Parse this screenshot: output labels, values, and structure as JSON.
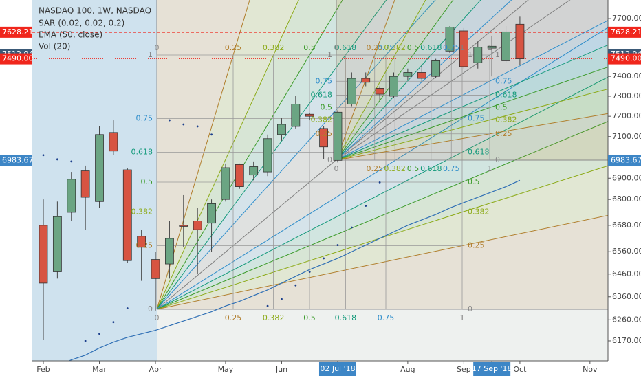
{
  "chart_data": {
    "type": "candlestick",
    "title": "NASDAQ 100, 1W, NASDAQ",
    "indicators": [
      "SAR (0.02, 0.02, 0.2)",
      "EMA (50, close)",
      "Vol (20)"
    ],
    "categories": [
      "Feb",
      null,
      null,
      null,
      "Mar",
      null,
      null,
      null,
      "Apr",
      null,
      null,
      null,
      null,
      "May",
      null,
      null,
      null,
      "Jun",
      null,
      null,
      null,
      "02 Jul '18",
      null,
      null,
      null,
      null,
      "Aug",
      null,
      null,
      null,
      "Sep",
      null,
      "17 Sep '18",
      null,
      "Oct",
      null,
      null,
      null,
      null,
      "Nov",
      null
    ],
    "highlight": [
      21,
      32
    ],
    "open": [
      6680,
      6470,
      6740,
      6935,
      6790,
      7120,
      6940,
      6630,
      6525,
      6505,
      6680,
      6700,
      6690,
      6800,
      6965,
      6915,
      6930,
      7110,
      7150,
      7210,
      7140,
      6985,
      7260,
      7390,
      7340,
      7300,
      7400,
      7420,
      7400,
      7530,
      7635,
      7470,
      7545,
      7480,
      7670,
      null,
      null,
      null,
      null,
      null,
      null
    ],
    "high": [
      6800,
      6790,
      6930,
      6960,
      7150,
      7180,
      6950,
      6660,
      6560,
      6700,
      6820,
      6760,
      6800,
      6970,
      6970,
      6980,
      7110,
      7190,
      7300,
      7215,
      7150,
      7230,
      7420,
      7420,
      7350,
      7420,
      7440,
      7460,
      7490,
      7660,
      7650,
      7580,
      7610,
      7660,
      7710,
      null,
      null,
      null,
      null,
      null,
      null
    ],
    "low": [
      6175,
      6440,
      6700,
      6660,
      6760,
      7010,
      6510,
      6430,
      6300,
      6440,
      6580,
      6460,
      6560,
      6790,
      6850,
      6890,
      6910,
      7080,
      7140,
      7180,
      6990,
      6975,
      7250,
      7350,
      7280,
      7290,
      7380,
      7370,
      7390,
      7520,
      7440,
      7440,
      7400,
      7470,
      7460,
      null,
      null,
      null,
      null,
      null,
      null
    ],
    "close": [
      6420,
      6720,
      6895,
      6810,
      7110,
      7030,
      6520,
      6580,
      6440,
      6620,
      6675,
      6660,
      6780,
      6950,
      6860,
      6955,
      7090,
      7160,
      7260,
      7200,
      7050,
      7220,
      7390,
      7370,
      7310,
      7400,
      7420,
      7390,
      7480,
      7655,
      7450,
      7550,
      7555,
      7630,
      7490,
      null,
      null,
      null,
      null,
      null,
      null
    ],
    "up_color": "#6ba583",
    "down_color": "#d75442",
    "ema": {
      "color": "#2f6fb5",
      "values": [
        6040,
        6065,
        6090,
        6110,
        6140,
        6165,
        6185,
        6200,
        6215,
        6235,
        6255,
        6275,
        6295,
        6320,
        6340,
        6365,
        6390,
        6420,
        6450,
        6480,
        6505,
        6530,
        6560,
        6590,
        6620,
        6650,
        6680,
        6705,
        6730,
        6760,
        6785,
        6810,
        6835,
        6860,
        6890,
        null,
        null,
        null,
        null,
        null,
        null
      ]
    },
    "sar": {
      "color": "#1c3f8c",
      "values": [
        7010,
        6990,
        6980,
        6170,
        6200,
        6250,
        6310,
        null,
        null,
        7180,
        7160,
        7150,
        7110,
        null,
        null,
        null,
        6320,
        6350,
        6410,
        6470,
        6530,
        6590,
        6670,
        6770,
        6880,
        null,
        null,
        null,
        null,
        null,
        null,
        null,
        null,
        null,
        null,
        null,
        null,
        null,
        null,
        null,
        null
      ]
    },
    "ylim": [
      6086,
      7799
    ],
    "log_scale": true,
    "yticks": [
      {
        "value": 7700,
        "label": "7700.00"
      },
      {
        "value": 7400,
        "label": "7400.00"
      },
      {
        "value": 7300,
        "label": "7300.00"
      },
      {
        "value": 7200,
        "label": "7200.00"
      },
      {
        "value": 7100,
        "label": "7100.00"
      },
      {
        "value": 6900,
        "label": "6900.00"
      },
      {
        "value": 6800,
        "label": "6800.00"
      },
      {
        "value": 6680,
        "label": "6680.00"
      },
      {
        "value": 6560,
        "label": "6560.00"
      },
      {
        "value": 6460,
        "label": "6460.00"
      },
      {
        "value": 6360,
        "label": "6360.00"
      },
      {
        "value": 6260,
        "label": "6260.00"
      },
      {
        "value": 6170,
        "label": "6170.00"
      }
    ],
    "price_tags": [
      {
        "value": 7628.21,
        "label": "7628.21",
        "color": "#f0261c",
        "line": "dashed"
      },
      {
        "value": 7512.94,
        "label": "7512.94",
        "color": "#3b5a78",
        "line": "none"
      },
      {
        "value": 7490,
        "label": "7490.00",
        "color": "#f0261c",
        "line": "dotted"
      },
      {
        "value": 6983.67,
        "label": "6983.67",
        "color": "#3d86c6",
        "line": "none"
      }
    ],
    "gann_levels": [
      0,
      0.25,
      0.382,
      0.5,
      0.618,
      0.75,
      1
    ],
    "gann_colors": [
      "#888888",
      "#b07d2b",
      "#8caa17",
      "#3a9a28",
      "#12997a",
      "#2f8ecb",
      "#7f7f7f"
    ]
  }
}
